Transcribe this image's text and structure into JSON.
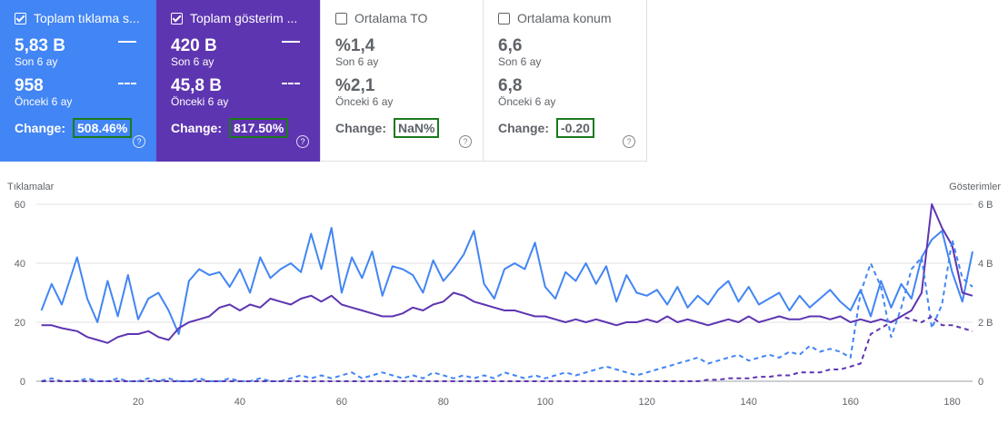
{
  "cards": [
    {
      "id": "clicks",
      "checked": true,
      "title": "Toplam tıklama s...",
      "current_value": "5,83 B",
      "current_label": "Son 6 ay",
      "previous_value": "958",
      "previous_label": "Önceki 6 ay",
      "change_label": "Change:",
      "change_value": "508.46%",
      "color": "#4285f4"
    },
    {
      "id": "impressions",
      "checked": true,
      "title": "Toplam gösterim ...",
      "current_value": "420 B",
      "current_label": "Son 6 ay",
      "previous_value": "45,8 B",
      "previous_label": "Önceki 6 ay",
      "change_label": "Change:",
      "change_value": "817.50%",
      "color": "#5e35b1"
    },
    {
      "id": "ctr",
      "checked": false,
      "title": "Ortalama TO",
      "current_value": "%1,4",
      "current_label": "Son 6 ay",
      "previous_value": "%2,1",
      "previous_label": "Önceki 6 ay",
      "change_label": "Change:",
      "change_value": "NaN%",
      "color": "#ffffff"
    },
    {
      "id": "position",
      "checked": false,
      "title": "Ortalama konum",
      "current_value": "6,6",
      "current_label": "Son 6 ay",
      "previous_value": "6,8",
      "previous_label": "Önceki 6 ay",
      "change_label": "Change:",
      "change_value": "-0.20",
      "color": "#ffffff"
    }
  ],
  "help_glyph": "?",
  "chart_data": {
    "type": "line",
    "ylabel_left": "Tıklamalar",
    "ylabel_right": "Gösterimler",
    "ylim_left": [
      0,
      60
    ],
    "ylim_right": [
      0,
      6
    ],
    "left_ticks": [
      "0",
      "20",
      "40",
      "60"
    ],
    "right_ticks": [
      "0",
      "2 B",
      "4 B",
      "6 B"
    ],
    "xlim": [
      0,
      184
    ],
    "x_ticks": [
      20,
      40,
      60,
      80,
      100,
      120,
      140,
      160,
      180
    ],
    "grid": true,
    "series": [
      {
        "style": "solid",
        "color": "#4285f4",
        "axis": "left",
        "x": [
          1,
          3,
          5,
          8,
          10,
          12,
          14,
          16,
          18,
          20,
          22,
          24,
          26,
          28,
          30,
          32,
          34,
          36,
          38,
          40,
          42,
          44,
          46,
          48,
          50,
          52,
          54,
          56,
          58,
          60,
          62,
          64,
          66,
          68,
          70,
          72,
          74,
          76,
          78,
          80,
          82,
          84,
          86,
          88,
          90,
          92,
          94,
          96,
          98,
          100,
          102,
          104,
          106,
          108,
          110,
          112,
          114,
          116,
          118,
          120,
          122,
          124,
          126,
          128,
          130,
          132,
          134,
          136,
          138,
          140,
          142,
          144,
          146,
          148,
          150,
          152,
          154,
          156,
          158,
          160,
          162,
          164,
          166,
          168,
          170,
          172,
          174,
          176,
          178,
          180,
          182,
          184
        ],
        "values": [
          24,
          33,
          26,
          42,
          28,
          20,
          34,
          22,
          36,
          21,
          28,
          30,
          24,
          16,
          34,
          38,
          36,
          37,
          32,
          38,
          30,
          42,
          35,
          38,
          40,
          37,
          50,
          38,
          52,
          30,
          42,
          35,
          44,
          29,
          39,
          38,
          36,
          30,
          41,
          34,
          38,
          43,
          51,
          33,
          28,
          38,
          40,
          38,
          47,
          32,
          28,
          37,
          34,
          40,
          33,
          39,
          27,
          36,
          30,
          29,
          31,
          26,
          32,
          25,
          29,
          26,
          31,
          34,
          27,
          32,
          26,
          28,
          30,
          24,
          29,
          25,
          28,
          31,
          27,
          24,
          31,
          22,
          34,
          25,
          33,
          28,
          42,
          48,
          51,
          37,
          27,
          44
        ]
      },
      {
        "style": "solid",
        "color": "#5e35b1",
        "axis": "left",
        "x": [
          1,
          3,
          5,
          8,
          10,
          12,
          14,
          16,
          18,
          20,
          22,
          24,
          26,
          28,
          30,
          32,
          34,
          36,
          38,
          40,
          42,
          44,
          46,
          48,
          50,
          52,
          54,
          56,
          58,
          60,
          62,
          64,
          66,
          68,
          70,
          72,
          74,
          76,
          78,
          80,
          82,
          84,
          86,
          88,
          90,
          92,
          94,
          96,
          98,
          100,
          102,
          104,
          106,
          108,
          110,
          112,
          114,
          116,
          118,
          120,
          122,
          124,
          126,
          128,
          130,
          132,
          134,
          136,
          138,
          140,
          142,
          144,
          146,
          148,
          150,
          152,
          154,
          156,
          158,
          160,
          162,
          164,
          166,
          168,
          170,
          172,
          174,
          176,
          178,
          180,
          182,
          184
        ],
        "values": [
          19,
          19,
          18,
          17,
          15,
          14,
          13,
          15,
          16,
          16,
          17,
          15,
          14,
          18,
          20,
          21,
          22,
          25,
          26,
          24,
          26,
          25,
          28,
          27,
          26,
          28,
          29,
          27,
          29,
          26,
          25,
          24,
          23,
          22,
          22,
          23,
          25,
          24,
          26,
          27,
          30,
          29,
          27,
          26,
          25,
          24,
          24,
          23,
          22,
          22,
          21,
          20,
          21,
          20,
          21,
          20,
          19,
          20,
          20,
          21,
          20,
          22,
          20,
          21,
          20,
          19,
          20,
          21,
          20,
          22,
          20,
          21,
          22,
          21,
          21,
          22,
          22,
          21,
          22,
          20,
          21,
          20,
          21,
          20,
          22,
          24,
          30,
          60,
          52,
          46,
          30,
          29
        ]
      },
      {
        "style": "dashed",
        "color": "#4285f4",
        "axis": "right",
        "x": [
          1,
          3,
          5,
          8,
          10,
          12,
          14,
          16,
          18,
          20,
          22,
          24,
          26,
          28,
          30,
          32,
          34,
          36,
          38,
          40,
          42,
          44,
          46,
          48,
          50,
          52,
          54,
          56,
          58,
          60,
          62,
          64,
          66,
          68,
          70,
          72,
          74,
          76,
          78,
          80,
          82,
          84,
          86,
          88,
          90,
          92,
          94,
          96,
          98,
          100,
          102,
          104,
          106,
          108,
          110,
          112,
          114,
          116,
          118,
          120,
          122,
          124,
          126,
          128,
          130,
          132,
          134,
          136,
          138,
          140,
          142,
          144,
          146,
          148,
          150,
          152,
          154,
          156,
          158,
          160,
          162,
          164,
          166,
          168,
          170,
          172,
          174,
          176,
          178,
          180,
          182,
          184
        ],
        "values": [
          0.0,
          0.1,
          0.0,
          0.0,
          0.1,
          0.0,
          0.0,
          0.1,
          0.0,
          0.0,
          0.1,
          0.0,
          0.1,
          0.0,
          0.0,
          0.1,
          0.0,
          0.0,
          0.1,
          0.0,
          0.0,
          0.1,
          0.0,
          0.0,
          0.1,
          0.2,
          0.1,
          0.2,
          0.1,
          0.2,
          0.3,
          0.1,
          0.2,
          0.3,
          0.2,
          0.1,
          0.2,
          0.1,
          0.3,
          0.2,
          0.1,
          0.2,
          0.1,
          0.2,
          0.1,
          0.3,
          0.2,
          0.1,
          0.2,
          0.1,
          0.2,
          0.3,
          0.2,
          0.3,
          0.4,
          0.5,
          0.4,
          0.3,
          0.2,
          0.3,
          0.4,
          0.5,
          0.6,
          0.7,
          0.8,
          0.6,
          0.7,
          0.8,
          0.9,
          0.7,
          0.8,
          0.9,
          0.8,
          1.0,
          0.9,
          1.2,
          1.0,
          1.1,
          1.0,
          0.8,
          3.0,
          4.0,
          3.2,
          1.5,
          2.5,
          3.8,
          4.2,
          1.8,
          2.6,
          4.8,
          3.5,
          3.2
        ]
      },
      {
        "style": "dashed",
        "color": "#5e35b1",
        "axis": "right",
        "x": [
          1,
          3,
          5,
          8,
          10,
          12,
          14,
          16,
          18,
          20,
          22,
          24,
          26,
          28,
          30,
          32,
          34,
          36,
          38,
          40,
          42,
          44,
          46,
          48,
          50,
          52,
          54,
          56,
          58,
          60,
          62,
          64,
          66,
          68,
          70,
          72,
          74,
          76,
          78,
          80,
          82,
          84,
          86,
          88,
          90,
          92,
          94,
          96,
          98,
          100,
          102,
          104,
          106,
          108,
          110,
          112,
          114,
          116,
          118,
          120,
          122,
          124,
          126,
          128,
          130,
          132,
          134,
          136,
          138,
          140,
          142,
          144,
          146,
          148,
          150,
          152,
          154,
          156,
          158,
          160,
          162,
          164,
          166,
          168,
          170,
          172,
          174,
          176,
          178,
          180,
          182,
          184
        ],
        "values": [
          0.0,
          0.0,
          0.0,
          0.0,
          0.0,
          0.0,
          0.0,
          0.0,
          0.0,
          0.0,
          0.0,
          0.0,
          0.0,
          0.0,
          0.0,
          0.0,
          0.0,
          0.0,
          0.0,
          0.0,
          0.0,
          0.0,
          0.0,
          0.0,
          0.0,
          0.0,
          0.0,
          0.0,
          0.0,
          0.0,
          0.0,
          0.0,
          0.0,
          0.0,
          0.0,
          0.0,
          0.0,
          0.0,
          0.0,
          0.0,
          0.0,
          0.0,
          0.0,
          0.0,
          0.0,
          0.0,
          0.0,
          0.0,
          0.0,
          0.0,
          0.0,
          0.0,
          0.0,
          0.0,
          0.0,
          0.0,
          0.0,
          0.0,
          0.0,
          0.0,
          0.0,
          0.0,
          0.0,
          0.0,
          0.0,
          0.05,
          0.05,
          0.1,
          0.1,
          0.1,
          0.15,
          0.15,
          0.2,
          0.2,
          0.3,
          0.3,
          0.3,
          0.4,
          0.4,
          0.5,
          0.6,
          1.6,
          1.8,
          2.0,
          2.2,
          2.1,
          2.0,
          2.2,
          1.9,
          1.9,
          1.8,
          1.7
        ]
      }
    ]
  }
}
